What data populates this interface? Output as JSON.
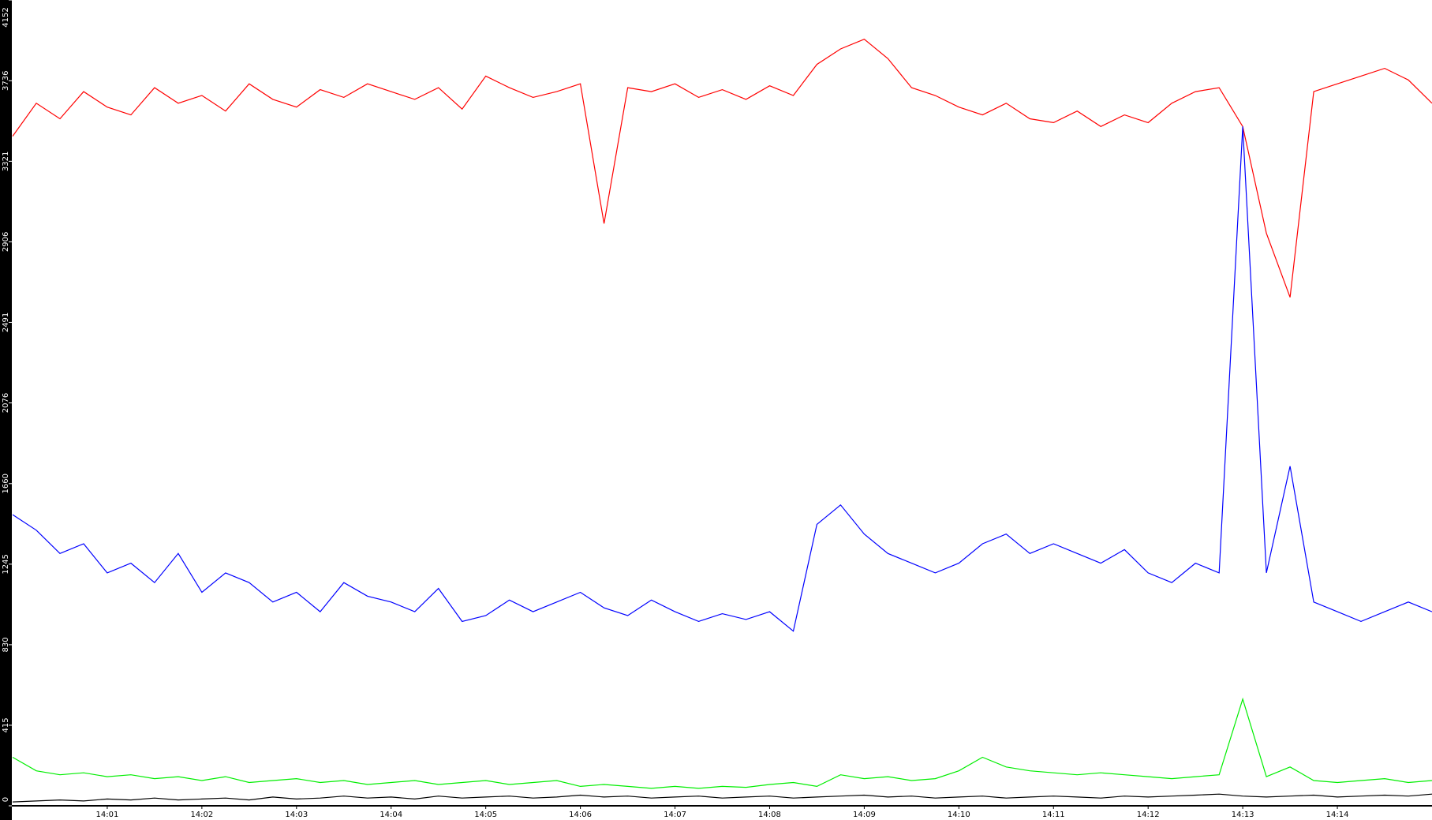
{
  "chart_data": {
    "type": "line",
    "categories": [
      null,
      null,
      null,
      null,
      "14:01",
      null,
      null,
      null,
      "14:02",
      null,
      null,
      null,
      "14:03",
      null,
      null,
      null,
      "14:04",
      null,
      null,
      null,
      "14:05",
      null,
      null,
      null,
      "14:06",
      null,
      null,
      null,
      "14:07",
      null,
      null,
      null,
      "14:08",
      null,
      null,
      null,
      "14:09",
      null,
      null,
      null,
      "14:10",
      null,
      null,
      null,
      "14:11",
      null,
      null,
      null,
      "14:12",
      null,
      null,
      null,
      "14:13",
      null,
      null,
      null,
      "14:14",
      null,
      null,
      null,
      null
    ],
    "series": [
      {
        "color": "#ff0000",
        "values": [
          3450,
          3620,
          3540,
          3680,
          3600,
          3560,
          3700,
          3620,
          3660,
          3580,
          3720,
          3640,
          3600,
          3690,
          3650,
          3720,
          3680,
          3640,
          3700,
          3590,
          3760,
          3700,
          3650,
          3680,
          3720,
          3000,
          3700,
          3680,
          3720,
          3650,
          3690,
          3640,
          3710,
          3660,
          3820,
          3900,
          3950,
          3850,
          3700,
          3660,
          3600,
          3560,
          3620,
          3540,
          3520,
          3580,
          3500,
          3560,
          3520,
          3620,
          3680,
          3700,
          3500,
          2950,
          2620,
          3680,
          3720,
          3760,
          3800,
          3740,
          3620
        ]
      },
      {
        "color": "#0000ff",
        "values": [
          1500,
          1420,
          1300,
          1350,
          1200,
          1250,
          1150,
          1300,
          1100,
          1200,
          1150,
          1050,
          1100,
          1000,
          1150,
          1080,
          1050,
          1000,
          1120,
          950,
          980,
          1060,
          1000,
          1050,
          1100,
          1020,
          980,
          1060,
          1000,
          950,
          990,
          960,
          1000,
          900,
          1450,
          1550,
          1400,
          1300,
          1250,
          1200,
          1250,
          1350,
          1400,
          1300,
          1350,
          1300,
          1250,
          1320,
          1200,
          1150,
          1250,
          1200,
          3500,
          1200,
          1750,
          1050,
          1000,
          950,
          1000,
          1050,
          1000
        ]
      },
      {
        "color": "#00ee00",
        "values": [
          250,
          180,
          160,
          170,
          150,
          160,
          140,
          150,
          130,
          150,
          120,
          130,
          140,
          120,
          130,
          110,
          120,
          130,
          110,
          120,
          130,
          110,
          120,
          130,
          100,
          110,
          100,
          90,
          100,
          90,
          100,
          95,
          110,
          120,
          100,
          160,
          140,
          150,
          130,
          140,
          180,
          250,
          200,
          180,
          170,
          160,
          170,
          160,
          150,
          140,
          150,
          160,
          550,
          150,
          200,
          130,
          120,
          130,
          140,
          120,
          130
        ]
      },
      {
        "color": "#000000",
        "values": [
          20,
          25,
          30,
          25,
          35,
          30,
          40,
          30,
          35,
          40,
          30,
          45,
          35,
          40,
          50,
          40,
          45,
          35,
          50,
          40,
          45,
          50,
          40,
          45,
          55,
          45,
          50,
          40,
          45,
          50,
          40,
          45,
          50,
          40,
          45,
          50,
          55,
          45,
          50,
          40,
          45,
          50,
          40,
          45,
          50,
          45,
          40,
          50,
          45,
          50,
          55,
          60,
          50,
          45,
          50,
          55,
          45,
          50,
          55,
          50,
          60
        ]
      }
    ],
    "ylim": [
      0,
      4152
    ],
    "yticks": [
      0,
      415,
      830,
      1245,
      1660,
      2076,
      2491,
      2906,
      3321,
      3736,
      4152
    ]
  }
}
